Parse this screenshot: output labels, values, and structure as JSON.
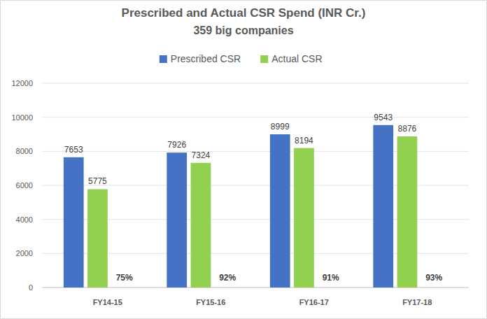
{
  "chart_data": {
    "type": "bar",
    "title": "Prescribed and Actual CSR Spend (INR Cr.)",
    "subtitle": "359 big companies",
    "categories": [
      "FY14-15",
      "FY15-16",
      "FY16-17",
      "FY17-18"
    ],
    "series": [
      {
        "name": "Prescribed CSR",
        "color": "#4472c4",
        "values": [
          7653,
          7926,
          8999,
          9543
        ]
      },
      {
        "name": "Actual CSR",
        "color": "#92d050",
        "values": [
          5775,
          7324,
          8194,
          8876
        ]
      }
    ],
    "annotations": [
      "75%",
      "92%",
      "91%",
      "93%"
    ],
    "ylim": [
      0,
      12000
    ],
    "yticks": [
      0,
      2000,
      4000,
      6000,
      8000,
      10000,
      12000
    ],
    "grid": true,
    "legend": "top",
    "data_labels": true
  }
}
